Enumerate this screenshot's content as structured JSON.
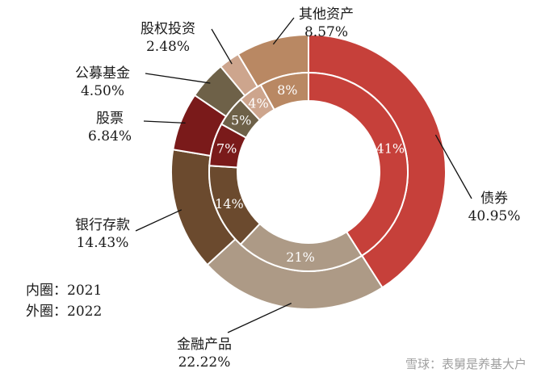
{
  "chart_data": {
    "type": "donut",
    "categories": [
      "债券",
      "金融产品",
      "银行存款",
      "股票",
      "公募基金",
      "股权投资",
      "其他资产"
    ],
    "series": [
      {
        "values": [
          40.95,
          22.22,
          14.43,
          6.84,
          4.5,
          2.48,
          8.57
        ]
      },
      {
        "values": [
          41,
          21,
          14,
          7,
          5,
          4,
          8
        ]
      }
    ],
    "outer_labels": [
      "40.95%",
      "22.22%",
      "14.43%",
      "6.84%",
      "4.50%",
      "2.48%",
      "8.57%"
    ],
    "inner_labels": [
      "41%",
      "21%",
      "14%",
      "7%",
      "5%",
      "4%",
      "8%"
    ],
    "colors": [
      "#c6403a",
      "#ad9a86",
      "#6b4a2e",
      "#7a1a1a",
      "#6e6148",
      "#cda58d",
      "#b98863"
    ]
  },
  "legend": {
    "inner": "内圈：2021",
    "outer": "外圈：2022"
  },
  "watermark": "雪球：表舅是养基大户"
}
